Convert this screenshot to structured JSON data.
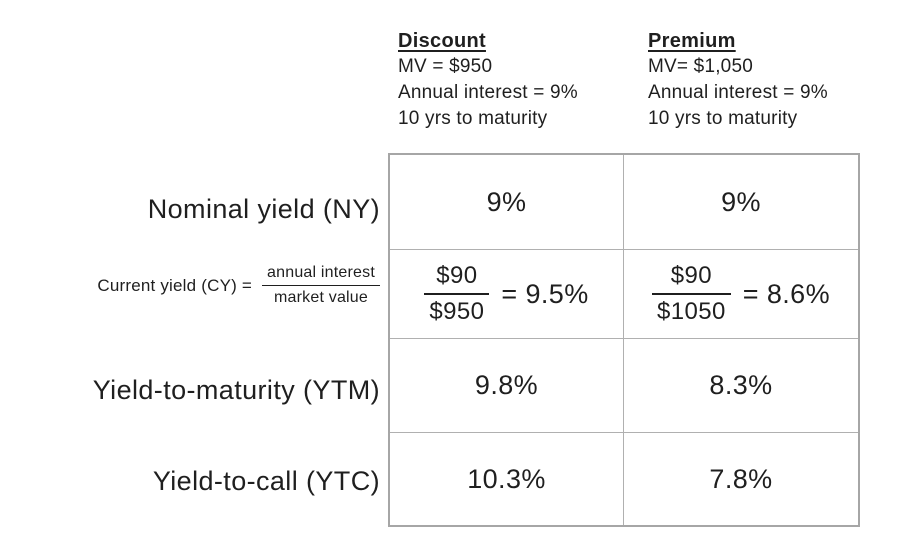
{
  "colors": {
    "background": "#ffffff",
    "text": "#1f1f1f",
    "table_border_outer": "#a6a6a6",
    "table_border_inner": "#b0b0b0"
  },
  "headers": {
    "discount": {
      "title": "Discount",
      "line1": "MV = $950",
      "line2": "Annual interest = 9%",
      "line3": "10 yrs to maturity"
    },
    "premium": {
      "title": "Premium",
      "line1": "MV= $1,050",
      "line2": "Annual interest = 9%",
      "line3": "10 yrs to maturity"
    }
  },
  "row_labels": {
    "nominal": "Nominal yield (NY)",
    "current_prefix": "Current yield (CY) =",
    "current_numerator": "annual interest",
    "current_denominator": "market value",
    "ytm": "Yield-to-maturity (YTM)",
    "ytc": "Yield-to-call (YTC)"
  },
  "values": {
    "nominal": {
      "discount": "9%",
      "premium": "9%"
    },
    "current": {
      "discount": {
        "numerator": "$90",
        "denominator": "$950",
        "result": "= 9.5%"
      },
      "premium": {
        "numerator": "$90",
        "denominator": "$1050",
        "result": "= 8.6%"
      }
    },
    "ytm": {
      "discount": "9.8%",
      "premium": "8.3%"
    },
    "ytc": {
      "discount": "10.3%",
      "premium": "7.8%"
    }
  },
  "chart_data": {
    "type": "table",
    "columns": [
      "",
      "Discount",
      "Premium"
    ],
    "column_notes": [
      "",
      "MV = $950; Annual interest = 9%; 10 yrs to maturity",
      "MV= $1,050; Annual interest = 9%; 10 yrs to maturity"
    ],
    "rows": [
      [
        "Nominal yield (NY)",
        "9%",
        "9%"
      ],
      [
        "Current yield (CY) = annual interest / market value",
        "$90 / $950 = 9.5%",
        "$90 / $1050 = 8.6%"
      ],
      [
        "Yield-to-maturity (YTM)",
        "9.8%",
        "8.3%"
      ],
      [
        "Yield-to-call (YTC)",
        "10.3%",
        "7.8%"
      ]
    ]
  }
}
